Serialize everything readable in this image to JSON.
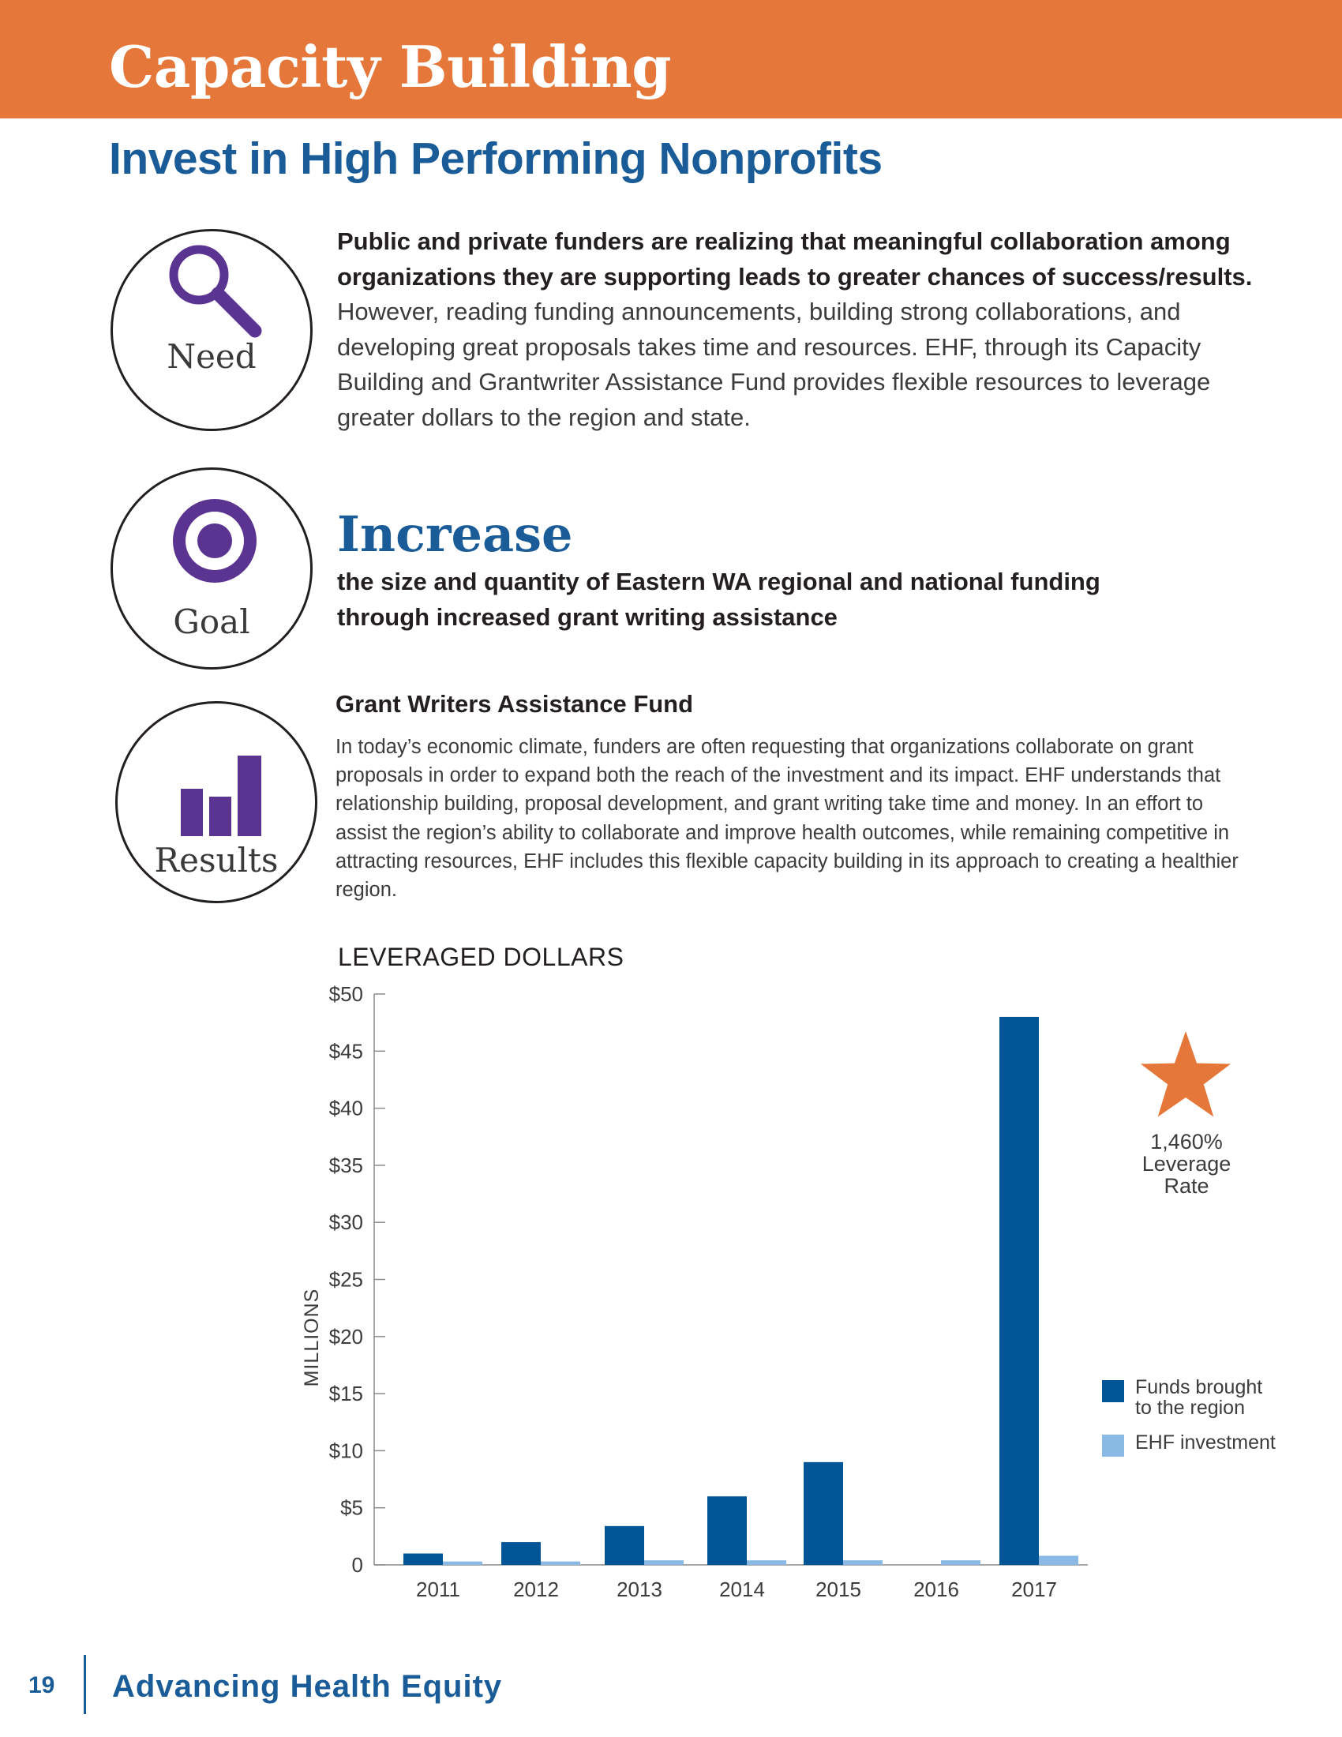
{
  "header": {
    "title": "Capacity Building"
  },
  "subtitle": "Invest in High Performing Nonprofits",
  "need": {
    "label": "Need",
    "icon": "magnifier-icon",
    "bold_text": "Public and private funders are realizing that meaningful collaboration among organizations they are supporting leads to greater chances of success/results.",
    "body_text": " However, reading funding announcements, building strong collaborations, and developing great proposals takes time and resources. EHF, through its Capacity Building and Grantwriter Assistance Fund provides flexible resources to leverage greater dollars to the region and state."
  },
  "goal": {
    "label": "Goal",
    "icon": "target-icon",
    "headline": "Increase",
    "text": "the size and quantity of Eastern WA regional and national funding through increased grant writing assistance"
  },
  "results": {
    "label": "Results",
    "icon": "bar-chart-icon",
    "title": "Grant Writers Assistance Fund",
    "body": "In today’s economic climate, funders are often requesting that organizations collaborate on grant proposals in order to expand both the reach of the investment and its impact. EHF understands that relationship building, proposal development, and grant writing take time and money. In an effort to assist the region’s ability to collaborate and improve health outcomes, while remaining competitive in attracting resources, EHF includes this flexible capacity building in its approach to creating a healthier region."
  },
  "chart_data": {
    "type": "bar",
    "title": "LEVERAGED DOLLARS",
    "ylabel": "MILLIONS",
    "xlabel": "",
    "categories": [
      "2011",
      "2012",
      "2013",
      "2014",
      "2015",
      "2016",
      "2017"
    ],
    "series": [
      {
        "name": "Funds brought to the region",
        "color": "#005596",
        "values": [
          1.0,
          2.0,
          3.4,
          6.0,
          9.0,
          0,
          48.0
        ]
      },
      {
        "name": "EHF investment",
        "color": "#8ab9e5",
        "values": [
          0.3,
          0.3,
          0.4,
          0.4,
          0.4,
          0.4,
          0.8
        ]
      }
    ],
    "ylim": [
      0,
      50
    ],
    "yticks": [
      0,
      5,
      10,
      15,
      20,
      25,
      30,
      35,
      40,
      45,
      50
    ],
    "ytick_labels": [
      "0",
      "$5",
      "$10",
      "$15",
      "$20",
      "$25",
      "$30",
      "$35",
      "$40",
      "$45",
      "$50"
    ],
    "grid": false,
    "legend_position": "right",
    "annotation": {
      "icon": "star-icon",
      "line1": "1,460%",
      "line2": "Leverage",
      "line3": "Rate"
    }
  },
  "legend": {
    "funds_line1": "Funds brought",
    "funds_line2": "to the region",
    "ehf": "EHF investment"
  },
  "colors": {
    "banner": "#e5773a",
    "accent_blue": "#1a5c98",
    "icon_purple": "#5b3391",
    "star": "#e5773a"
  },
  "footer": {
    "page_number": "19",
    "title": "Advancing Health Equity"
  }
}
